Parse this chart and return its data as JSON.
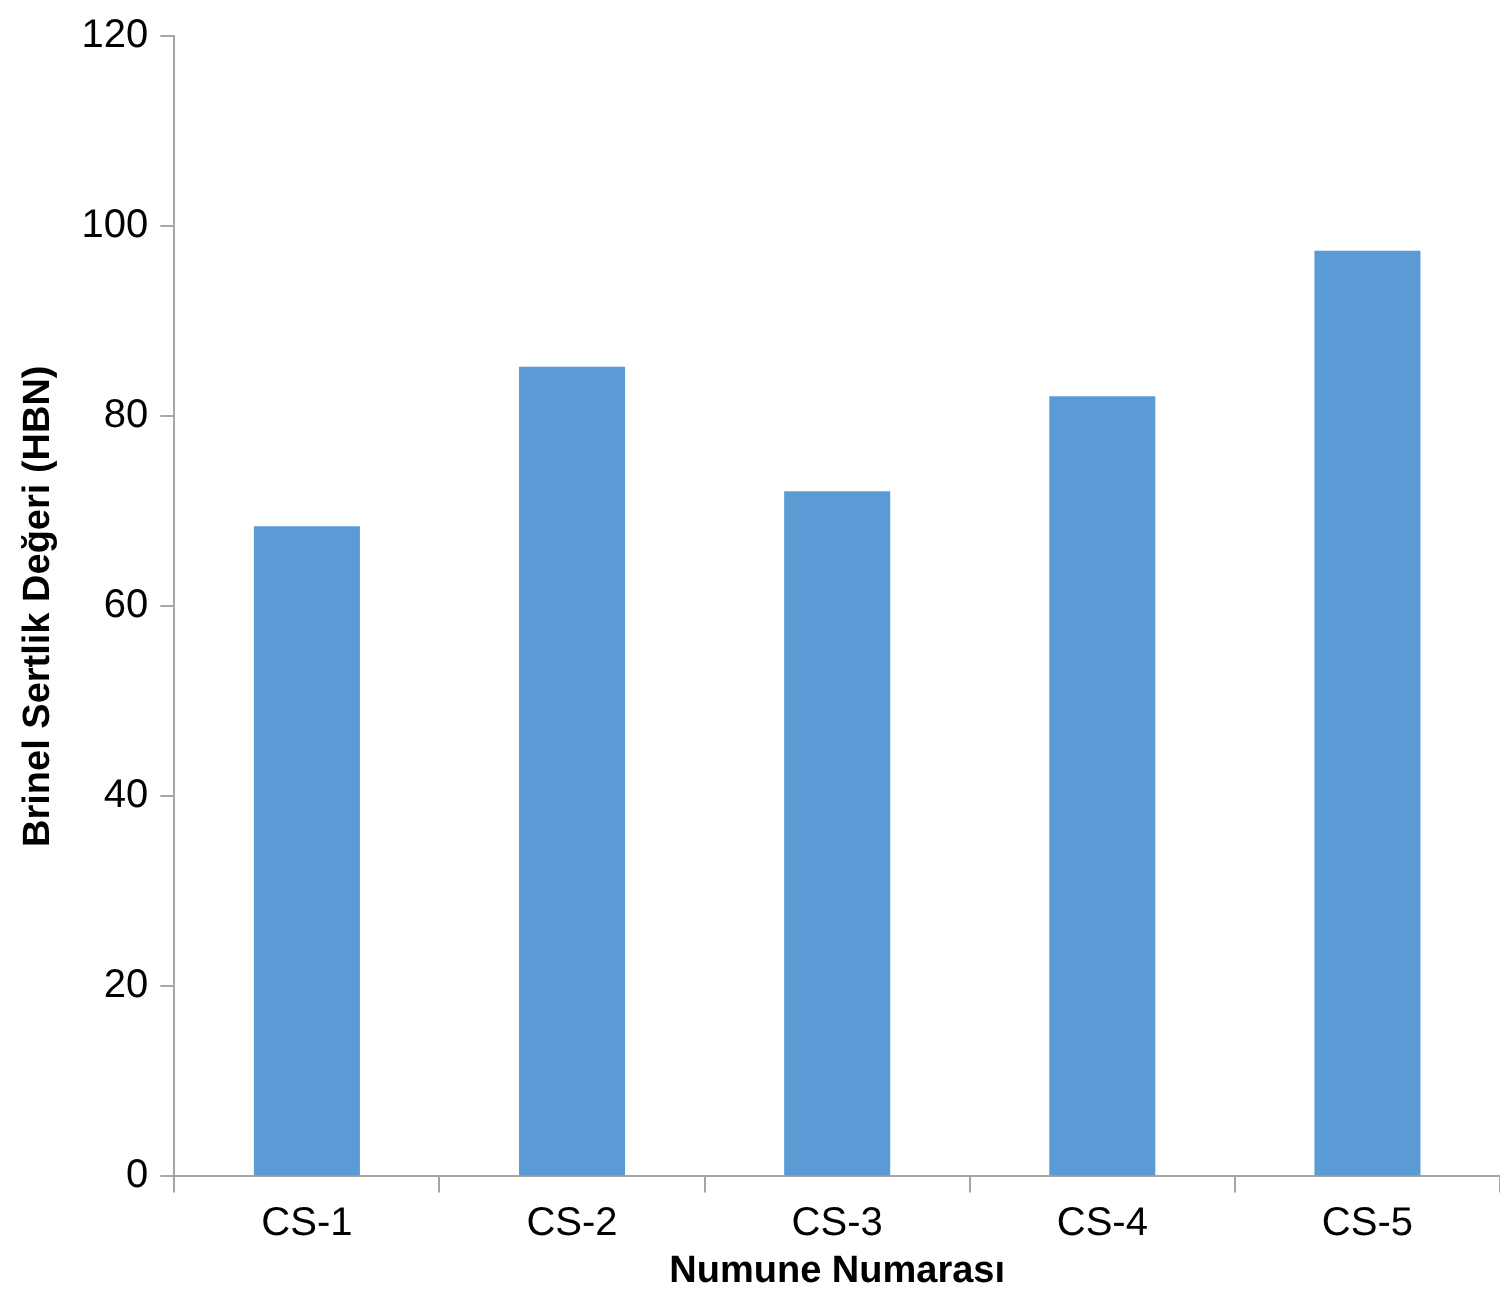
{
  "chart_data": {
    "type": "bar",
    "xlabel": "Numune Numarası",
    "ylabel": "Brinel Sertlik Değeri (HBN)",
    "categories": [
      "CS-1",
      "CS-2",
      "CS-3",
      "CS-4",
      "CS-5"
    ],
    "values": [
      68.4,
      85.2,
      72.1,
      82.1,
      97.4
    ],
    "color": "#5b9bd5",
    "ylim": [
      0,
      120
    ],
    "yticks": [
      0,
      20,
      40,
      60,
      80,
      100,
      120
    ],
    "grid": false,
    "legend": false
  }
}
